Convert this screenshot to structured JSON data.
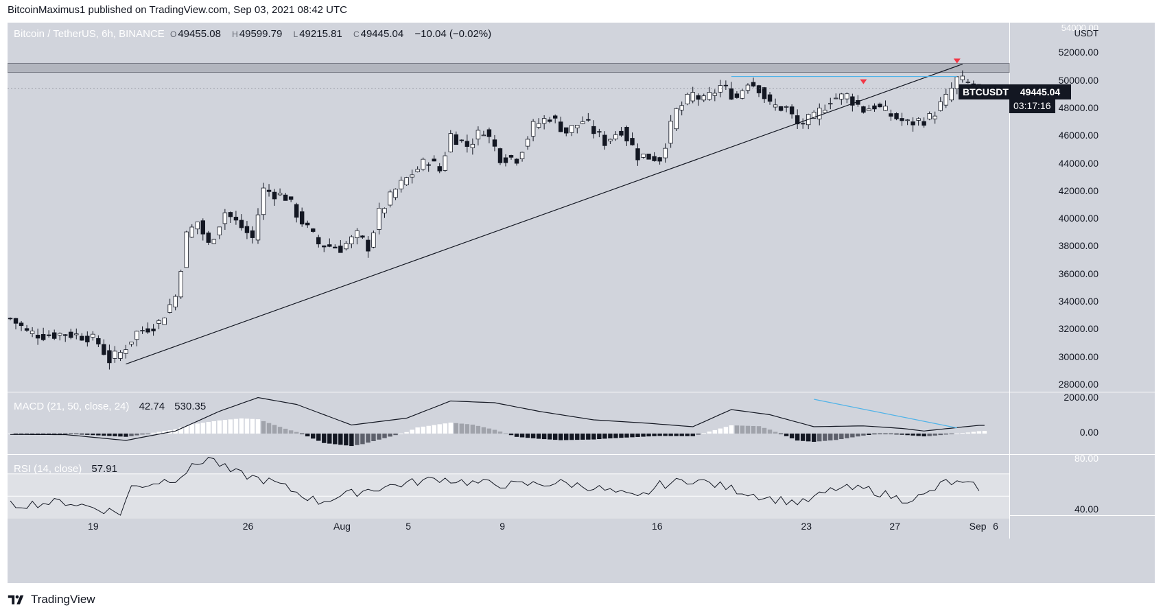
{
  "header": {
    "publisher_line": "BitcoinMaximus1 published on TradingView.com, Sep 03, 2021 08:42 UTC"
  },
  "legend": {
    "symbol": "Bitcoin / TetherUS, 6h, BINANCE",
    "open": "49455.08",
    "high": "49599.79",
    "low": "49215.81",
    "close": "49445.04",
    "change": "−10.04 (−0.02%)",
    "ohlc_keys": [
      "O",
      "H",
      "L",
      "C"
    ]
  },
  "price_axis": {
    "unit": "USDT",
    "top_partial": "54000.00",
    "labels": [
      "52000.00",
      "50000.00",
      "48000.00",
      "46000.00",
      "44000.00",
      "42000.00",
      "40000.00",
      "38000.00",
      "36000.00",
      "34000.00",
      "32000.00",
      "30000.00",
      "28000.00"
    ]
  },
  "macd_axis": {
    "labels": [
      "2000.00",
      "0.00"
    ]
  },
  "rsi_axis": {
    "labels": [
      "80.00",
      "40.00"
    ]
  },
  "time_axis": {
    "labels": [
      "19",
      "26",
      "Aug",
      "5",
      "9",
      "16",
      "23",
      "27",
      "Sep",
      "6"
    ]
  },
  "last_price": {
    "ticker": "BTCUSDT",
    "price": "49445.04",
    "countdown": "03:17:16"
  },
  "macd": {
    "title": "MACD (21, 50, close, 24)",
    "histogram": "42.74",
    "signal": "530.35"
  },
  "rsi": {
    "title": "RSI (14, close)",
    "value": "57.91"
  },
  "footer": {
    "brand": "TradingView"
  },
  "colors": {
    "background": "#d1d4dc",
    "candle": "#131722",
    "trendline": "#131722",
    "resistance_line": "#4fb3e8",
    "rejection_marker": "#f23645",
    "resistance_band": "#b2b5be"
  },
  "chart_data": {
    "type": "candlestick",
    "x_axis_labels": [
      "19",
      "26",
      "Aug",
      "5",
      "9",
      "16",
      "23",
      "27",
      "Sep",
      "6"
    ],
    "ylim": [
      27500,
      54200
    ],
    "price_path": [
      [
        0,
        32800
      ],
      [
        2,
        32200
      ],
      [
        3,
        31800
      ],
      [
        6,
        31600
      ],
      [
        10,
        31700
      ],
      [
        14,
        31500
      ],
      [
        16,
        31000
      ],
      [
        18,
        29800
      ],
      [
        20,
        30300
      ],
      [
        23,
        31800
      ],
      [
        27,
        32500
      ],
      [
        30,
        34400
      ],
      [
        32,
        38800
      ],
      [
        34,
        39800
      ],
      [
        36,
        38100
      ],
      [
        39,
        40500
      ],
      [
        42,
        39400
      ],
      [
        44,
        38600
      ],
      [
        46,
        42100
      ],
      [
        50,
        41600
      ],
      [
        53,
        39800
      ],
      [
        56,
        38200
      ],
      [
        60,
        37900
      ],
      [
        63,
        38800
      ],
      [
        65,
        38000
      ],
      [
        67,
        40400
      ],
      [
        70,
        42100
      ],
      [
        73,
        43300
      ],
      [
        76,
        44300
      ],
      [
        78,
        43500
      ],
      [
        80,
        46100
      ],
      [
        83,
        45300
      ],
      [
        86,
        46500
      ],
      [
        89,
        44500
      ],
      [
        92,
        44400
      ],
      [
        95,
        46700
      ],
      [
        98,
        47400
      ],
      [
        101,
        46300
      ],
      [
        104,
        47100
      ],
      [
        108,
        45600
      ],
      [
        111,
        46500
      ],
      [
        114,
        44600
      ],
      [
        118,
        44400
      ],
      [
        121,
        47800
      ],
      [
        124,
        49000
      ],
      [
        126,
        48500
      ],
      [
        129,
        49600
      ],
      [
        132,
        48800
      ],
      [
        134,
        50000
      ],
      [
        136,
        49500
      ],
      [
        138,
        48200
      ],
      [
        141,
        48000
      ],
      [
        143,
        46800
      ],
      [
        146,
        47300
      ],
      [
        149,
        48700
      ],
      [
        152,
        48900
      ],
      [
        155,
        47900
      ],
      [
        157,
        48200
      ],
      [
        160,
        47500
      ],
      [
        163,
        46900
      ],
      [
        167,
        47300
      ],
      [
        170,
        48700
      ],
      [
        172,
        50100
      ],
      [
        174,
        49800
      ],
      [
        176,
        49400
      ]
    ],
    "trendline": {
      "from": [
        21,
        29500
      ],
      "to": [
        173,
        51200
      ]
    },
    "resistance_line": {
      "from": [
        131,
        50300
      ],
      "to": [
        172,
        50300
      ]
    },
    "resistance_band": [
      51250,
      50600
    ],
    "rejection_markers": [
      [
        155,
        49800
      ],
      [
        172,
        51300
      ]
    ],
    "series": [
      {
        "name": "MACD (21, 50, close, 24)",
        "last": 530.35,
        "histogram_last": 42.74,
        "path": [
          [
            0,
            -50
          ],
          [
            10,
            -60
          ],
          [
            21,
            -400
          ],
          [
            30,
            150
          ],
          [
            38,
            1300
          ],
          [
            45,
            2100
          ],
          [
            52,
            1700
          ],
          [
            62,
            500
          ],
          [
            72,
            900
          ],
          [
            80,
            1900
          ],
          [
            88,
            1800
          ],
          [
            96,
            1300
          ],
          [
            106,
            800
          ],
          [
            116,
            600
          ],
          [
            124,
            400
          ],
          [
            131,
            1400
          ],
          [
            138,
            1100
          ],
          [
            146,
            400
          ],
          [
            155,
            450
          ],
          [
            162,
            300
          ],
          [
            166,
            150
          ],
          [
            172,
            350
          ],
          [
            176,
            480
          ]
        ]
      },
      {
        "name": "RSI (14, close)",
        "last": 57.91,
        "path": [
          [
            0,
            42
          ],
          [
            10,
            45
          ],
          [
            20,
            35
          ],
          [
            22,
            58
          ],
          [
            30,
            66
          ],
          [
            36,
            85
          ],
          [
            40,
            72
          ],
          [
            48,
            62
          ],
          [
            56,
            45
          ],
          [
            64,
            55
          ],
          [
            70,
            60
          ],
          [
            78,
            66
          ],
          [
            84,
            62
          ],
          [
            92,
            60
          ],
          [
            100,
            62
          ],
          [
            106,
            58
          ],
          [
            114,
            48
          ],
          [
            118,
            60
          ],
          [
            124,
            65
          ],
          [
            130,
            58
          ],
          [
            138,
            48
          ],
          [
            144,
            44
          ],
          [
            150,
            57
          ],
          [
            156,
            56
          ],
          [
            162,
            47
          ],
          [
            166,
            50
          ],
          [
            170,
            63
          ],
          [
            176,
            58
          ]
        ]
      }
    ],
    "macd_ylim": [
      -1200,
      2400
    ],
    "rsi_ylim": [
      33,
      87
    ]
  }
}
